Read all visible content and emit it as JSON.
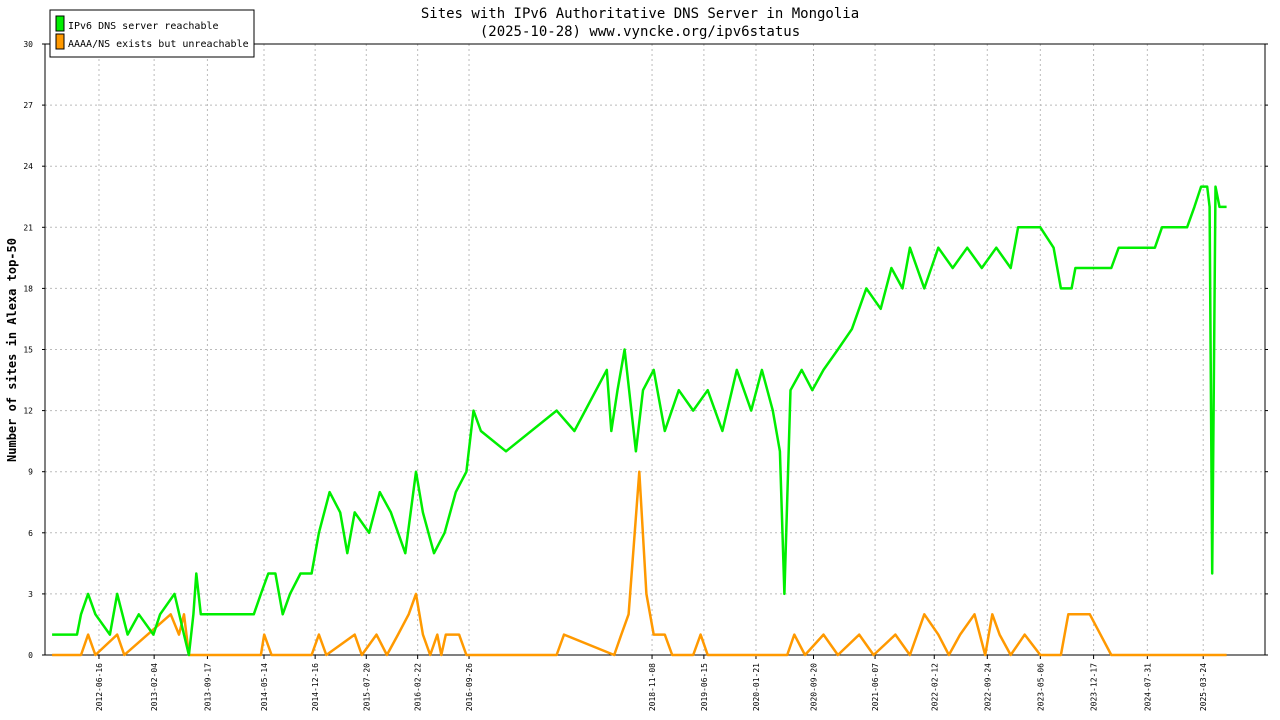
{
  "chart_data": {
    "type": "line",
    "title": "Sites with IPv6 Authoritative DNS Server in Mongolia",
    "subtitle": "(2025-10-28) www.vyncke.org/ipv6status",
    "xlabel": "",
    "ylabel": "Number of sites in Alexa top-50",
    "ylim": [
      0,
      30
    ],
    "yticks": [
      "0",
      "3",
      "6",
      "9",
      "12",
      "15",
      "18",
      "21",
      "24",
      "27",
      "30"
    ],
    "xlim": [
      "2011-11-01",
      "2025-12-10"
    ],
    "xticks": [
      "2012-06-16",
      "2013-02-04",
      "2013-09-17",
      "2014-05-14",
      "2014-12-16",
      "2015-07-20",
      "2016-02-22",
      "2016-09-26",
      "2018-11-08",
      "2019-06-15",
      "2020-01-21",
      "2020-09-20",
      "2021-06-07",
      "2022-02-12",
      "2022-09-24",
      "2023-05-06",
      "2023-12-17",
      "2024-07-31",
      "2025-03-24"
    ],
    "grid": true,
    "legend_position": "top-left",
    "series": [
      {
        "name": "IPv6 DNS server reachable",
        "color": "#00ee00",
        "points": [
          [
            "2011-12-01",
            1
          ],
          [
            "2012-03-15",
            1
          ],
          [
            "2012-04-01",
            2
          ],
          [
            "2012-05-01",
            3
          ],
          [
            "2012-06-01",
            2
          ],
          [
            "2012-08-01",
            1
          ],
          [
            "2012-09-01",
            3
          ],
          [
            "2012-10-15",
            1
          ],
          [
            "2012-12-01",
            2
          ],
          [
            "2013-02-01",
            1
          ],
          [
            "2013-03-01",
            2
          ],
          [
            "2013-05-01",
            3
          ],
          [
            "2013-06-10",
            1
          ],
          [
            "2013-07-01",
            0
          ],
          [
            "2013-07-20",
            2
          ],
          [
            "2013-08-01",
            4
          ],
          [
            "2013-08-20",
            2
          ],
          [
            "2013-09-17",
            2
          ],
          [
            "2014-04-01",
            2
          ],
          [
            "2014-05-01",
            3
          ],
          [
            "2014-06-01",
            4
          ],
          [
            "2014-07-01",
            4
          ],
          [
            "2014-08-01",
            2
          ],
          [
            "2014-09-01",
            3
          ],
          [
            "2014-10-15",
            4
          ],
          [
            "2014-12-01",
            4
          ],
          [
            "2015-01-01",
            6
          ],
          [
            "2015-02-15",
            8
          ],
          [
            "2015-04-01",
            7
          ],
          [
            "2015-05-01",
            5
          ],
          [
            "2015-06-01",
            7
          ],
          [
            "2015-08-01",
            6
          ],
          [
            "2015-09-15",
            8
          ],
          [
            "2015-11-01",
            7
          ],
          [
            "2016-01-01",
            5
          ],
          [
            "2016-02-15",
            9
          ],
          [
            "2016-03-15",
            7
          ],
          [
            "2016-05-01",
            5
          ],
          [
            "2016-06-15",
            6
          ],
          [
            "2016-08-01",
            8
          ],
          [
            "2016-09-15",
            9
          ],
          [
            "2016-10-15",
            12
          ],
          [
            "2016-11-15",
            11
          ],
          [
            "2017-03-01",
            10
          ],
          [
            "2017-10-01",
            12
          ],
          [
            "2017-12-15",
            11
          ],
          [
            "2018-05-01",
            14
          ],
          [
            "2018-05-20",
            11
          ],
          [
            "2018-06-15",
            13
          ],
          [
            "2018-07-15",
            15
          ],
          [
            "2018-09-01",
            10
          ],
          [
            "2018-10-01",
            13
          ],
          [
            "2018-11-15",
            14
          ],
          [
            "2019-01-01",
            11
          ],
          [
            "2019-03-01",
            13
          ],
          [
            "2019-05-01",
            12
          ],
          [
            "2019-07-01",
            13
          ],
          [
            "2019-09-01",
            11
          ],
          [
            "2019-11-01",
            14
          ],
          [
            "2020-01-01",
            12
          ],
          [
            "2020-02-15",
            14
          ],
          [
            "2020-04-01",
            12
          ],
          [
            "2020-05-01",
            10
          ],
          [
            "2020-05-20",
            3
          ],
          [
            "2020-06-15",
            13
          ],
          [
            "2020-08-01",
            14
          ],
          [
            "2020-09-15",
            13
          ],
          [
            "2020-11-01",
            14
          ],
          [
            "2021-01-01",
            15
          ],
          [
            "2021-03-01",
            16
          ],
          [
            "2021-05-01",
            18
          ],
          [
            "2021-07-01",
            17
          ],
          [
            "2021-08-15",
            19
          ],
          [
            "2021-10-01",
            18
          ],
          [
            "2021-11-01",
            20
          ],
          [
            "2022-01-01",
            18
          ],
          [
            "2022-03-01",
            20
          ],
          [
            "2022-05-01",
            19
          ],
          [
            "2022-07-01",
            20
          ],
          [
            "2022-09-01",
            19
          ],
          [
            "2022-11-01",
            20
          ],
          [
            "2023-01-01",
            19
          ],
          [
            "2023-02-01",
            21
          ],
          [
            "2023-05-06",
            21
          ],
          [
            "2023-07-01",
            20
          ],
          [
            "2023-08-01",
            18
          ],
          [
            "2023-09-15",
            18
          ],
          [
            "2023-10-01",
            19
          ],
          [
            "2024-03-01",
            19
          ],
          [
            "2024-04-01",
            20
          ],
          [
            "2024-09-01",
            20
          ],
          [
            "2024-10-01",
            21
          ],
          [
            "2025-01-15",
            21
          ],
          [
            "2025-02-15",
            22
          ],
          [
            "2025-03-15",
            23
          ],
          [
            "2025-04-10",
            23
          ],
          [
            "2025-04-20",
            22
          ],
          [
            "2025-05-01",
            4
          ],
          [
            "2025-05-15",
            23
          ],
          [
            "2025-06-01",
            22
          ],
          [
            "2025-07-01",
            22
          ]
        ]
      },
      {
        "name": "AAAA/NS exists but unreachable",
        "color": "#ff9900",
        "points": [
          [
            "2011-12-01",
            0
          ],
          [
            "2012-04-01",
            0
          ],
          [
            "2012-05-01",
            1
          ],
          [
            "2012-06-01",
            0
          ],
          [
            "2012-09-01",
            1
          ],
          [
            "2012-10-01",
            0
          ],
          [
            "2013-04-15",
            2
          ],
          [
            "2013-05-20",
            1
          ],
          [
            "2013-06-10",
            2
          ],
          [
            "2013-07-01",
            0
          ],
          [
            "2014-05-01",
            0
          ],
          [
            "2014-05-15",
            1
          ],
          [
            "2014-06-15",
            0
          ],
          [
            "2014-12-01",
            0
          ],
          [
            "2015-01-01",
            1
          ],
          [
            "2015-02-01",
            0
          ],
          [
            "2015-06-01",
            1
          ],
          [
            "2015-07-01",
            0
          ],
          [
            "2015-09-01",
            1
          ],
          [
            "2015-10-15",
            0
          ],
          [
            "2015-12-01",
            1
          ],
          [
            "2016-01-15",
            2
          ],
          [
            "2016-02-15",
            3
          ],
          [
            "2016-03-15",
            1
          ],
          [
            "2016-04-15",
            0
          ],
          [
            "2016-05-15",
            1
          ],
          [
            "2016-06-01",
            0
          ],
          [
            "2016-06-20",
            1
          ],
          [
            "2016-08-15",
            1
          ],
          [
            "2016-09-15",
            0
          ],
          [
            "2017-10-01",
            0
          ],
          [
            "2017-11-01",
            1
          ],
          [
            "2018-06-01",
            0
          ],
          [
            "2018-07-01",
            1
          ],
          [
            "2018-08-01",
            2
          ],
          [
            "2018-09-15",
            9
          ],
          [
            "2018-10-15",
            3
          ],
          [
            "2018-11-15",
            1
          ],
          [
            "2019-01-01",
            1
          ],
          [
            "2019-02-01",
            0
          ],
          [
            "2019-05-01",
            0
          ],
          [
            "2019-06-01",
            1
          ],
          [
            "2019-07-01",
            0
          ],
          [
            "2020-06-01",
            0
          ],
          [
            "2020-07-01",
            1
          ],
          [
            "2020-08-15",
            0
          ],
          [
            "2020-11-01",
            1
          ],
          [
            "2021-01-01",
            0
          ],
          [
            "2021-04-01",
            1
          ],
          [
            "2021-06-01",
            0
          ],
          [
            "2021-09-01",
            1
          ],
          [
            "2021-11-01",
            0
          ],
          [
            "2022-01-01",
            2
          ],
          [
            "2022-03-01",
            1
          ],
          [
            "2022-04-15",
            0
          ],
          [
            "2022-06-01",
            1
          ],
          [
            "2022-08-01",
            2
          ],
          [
            "2022-09-15",
            0
          ],
          [
            "2022-10-15",
            2
          ],
          [
            "2022-11-15",
            1
          ],
          [
            "2023-01-01",
            0
          ],
          [
            "2023-03-01",
            1
          ],
          [
            "2023-05-06",
            0
          ],
          [
            "2023-08-01",
            0
          ],
          [
            "2023-09-01",
            2
          ],
          [
            "2023-12-01",
            2
          ],
          [
            "2024-01-15",
            1
          ],
          [
            "2024-03-01",
            0
          ],
          [
            "2025-07-01",
            0
          ]
        ]
      }
    ]
  },
  "legend": [
    {
      "label": "IPv6 DNS server reachable",
      "color": "#00ee00"
    },
    {
      "label": "AAAA/NS exists but unreachable",
      "color": "#ff9900"
    }
  ]
}
